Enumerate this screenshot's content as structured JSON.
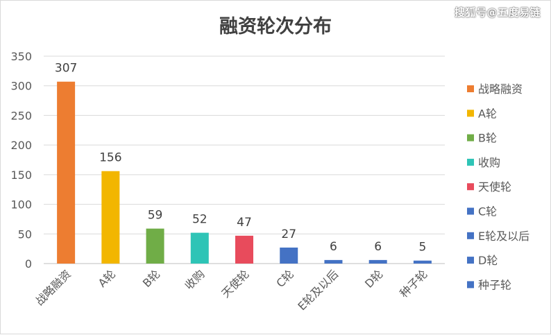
{
  "watermark": "搜狐号@五度易链",
  "chart_data": {
    "type": "bar",
    "title": "融资轮次分布",
    "xlabel": "",
    "ylabel": "",
    "ylim": [
      0,
      350
    ],
    "yticks": [
      0,
      50,
      100,
      150,
      200,
      250,
      300,
      350
    ],
    "grid": true,
    "legend_position": "right",
    "categories": [
      "战略融资",
      "A轮",
      "B轮",
      "收购",
      "天使轮",
      "C轮",
      "E轮及以后",
      "D轮",
      "种子轮"
    ],
    "values": [
      307,
      156,
      59,
      52,
      47,
      27,
      6,
      6,
      5
    ],
    "colors": [
      "#ED7D31",
      "#F2B600",
      "#70AD47",
      "#2EC4B6",
      "#E84B5C",
      "#4472C4",
      "#4472C4",
      "#4472C4",
      "#4472C4"
    ]
  }
}
